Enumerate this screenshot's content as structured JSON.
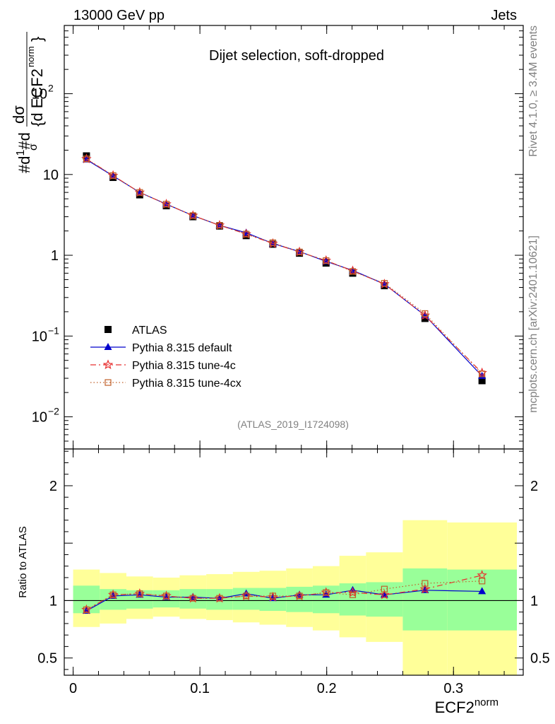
{
  "header": {
    "left": "13000 GeV pp",
    "right": "Jets"
  },
  "side_labels": {
    "top": "Rivet 4.1.0, ≥ 3.4M events",
    "bottom": "mcplots.cern.ch [arXiv:2401.10621]"
  },
  "chart_data": [
    {
      "type": "line",
      "panel": "main",
      "title": "Dijet selection, soft-dropped",
      "analysis_id": "(ATLAS_2019_I1724098)",
      "ylabel": "1/σ dσ/d ECF2^norm",
      "yscale": "log",
      "ylim": [
        0.004,
        700
      ],
      "xlim": [
        -0.007,
        0.355
      ],
      "ytick_labels": [
        "10",
        "1"
      ],
      "ytick_sci": [
        {
          "base": "10",
          "exp": "2",
          "value": 100
        },
        {
          "base": "10",
          "exp": "−1",
          "value": 0.1
        },
        {
          "base": "10",
          "exp": "−2",
          "value": 0.01
        }
      ],
      "x": [
        0.0105,
        0.0315,
        0.0525,
        0.0735,
        0.0945,
        0.1155,
        0.1365,
        0.1575,
        0.1785,
        0.1995,
        0.2205,
        0.2455,
        0.2775,
        0.3225
      ],
      "series": [
        {
          "name": "ATLAS",
          "color": "#000000",
          "marker": "square",
          "values": [
            17.0,
            9.2,
            5.6,
            4.1,
            3.0,
            2.3,
            1.75,
            1.37,
            1.06,
            0.8,
            0.6,
            0.42,
            0.165,
            0.028
          ]
        },
        {
          "name": "Pythia 8.315 default",
          "color": "#0000cc",
          "marker": "triangle",
          "values": [
            15.3,
            9.6,
            6.0,
            4.3,
            3.1,
            2.35,
            1.9,
            1.4,
            1.11,
            0.84,
            0.65,
            0.44,
            0.18,
            0.032
          ]
        },
        {
          "name": "Pythia 8.315 tune-4c",
          "color": "#e83030",
          "marker": "star",
          "values": [
            15.6,
            9.7,
            6.0,
            4.3,
            3.1,
            2.35,
            1.83,
            1.4,
            1.1,
            0.86,
            0.64,
            0.44,
            0.18,
            0.035
          ]
        },
        {
          "name": "Pythia 8.315 tune-4cx",
          "color": "#c0602a",
          "marker": "open-square",
          "values": [
            15.6,
            9.7,
            6.0,
            4.3,
            3.1,
            2.35,
            1.83,
            1.43,
            1.1,
            0.86,
            0.63,
            0.45,
            0.19,
            0.034
          ]
        }
      ]
    },
    {
      "type": "line",
      "panel": "ratio",
      "ylabel": "Ratio to ATLAS",
      "xlabel": "ECF2^norm",
      "ylim": [
        0.35,
        2.32
      ],
      "xlim": [
        -0.007,
        0.355
      ],
      "ytick_labels": [
        "0.5",
        "1",
        "2"
      ],
      "xtick_labels": [
        "0",
        "0.1",
        "0.2",
        "0.3"
      ],
      "band_edges": [
        0,
        0.021,
        0.042,
        0.063,
        0.084,
        0.105,
        0.126,
        0.147,
        0.168,
        0.189,
        0.21,
        0.231,
        0.26,
        0.295,
        0.35
      ],
      "band_stat_lo": [
        0.89,
        0.92,
        0.93,
        0.94,
        0.93,
        0.92,
        0.92,
        0.91,
        0.9,
        0.89,
        0.87,
        0.86,
        0.74,
        0.74
      ],
      "band_stat_hi": [
        1.13,
        1.1,
        1.09,
        1.09,
        1.1,
        1.1,
        1.11,
        1.11,
        1.12,
        1.13,
        1.15,
        1.16,
        1.28,
        1.27
      ],
      "band_syst_lo": [
        0.77,
        0.8,
        0.84,
        0.86,
        0.84,
        0.83,
        0.81,
        0.79,
        0.77,
        0.74,
        0.68,
        0.64,
        0.34,
        0.34
      ],
      "band_syst_hi": [
        1.27,
        1.24,
        1.21,
        1.2,
        1.22,
        1.23,
        1.25,
        1.26,
        1.28,
        1.3,
        1.39,
        1.42,
        1.7,
        1.68
      ],
      "x": [
        0.0105,
        0.0315,
        0.0525,
        0.0735,
        0.0945,
        0.1155,
        0.1365,
        0.1575,
        0.1785,
        0.1995,
        0.2205,
        0.2455,
        0.2775,
        0.3225
      ],
      "series": [
        {
          "name": "Pythia 8.315 default",
          "color": "#0000cc",
          "marker": "triangle",
          "values": [
            0.91,
            1.04,
            1.05,
            1.03,
            1.03,
            1.02,
            1.06,
            1.02,
            1.05,
            1.05,
            1.09,
            1.05,
            1.09,
            1.08
          ]
        },
        {
          "name": "Pythia 8.315 tune-4c",
          "color": "#e83030",
          "marker": "star",
          "values": [
            0.92,
            1.05,
            1.06,
            1.04,
            1.02,
            1.02,
            1.04,
            1.03,
            1.04,
            1.07,
            1.07,
            1.05,
            1.1,
            1.22
          ]
        },
        {
          "name": "Pythia 8.315 tune-4cx",
          "color": "#c0602a",
          "marker": "open-square",
          "values": [
            0.92,
            1.05,
            1.06,
            1.04,
            1.02,
            1.02,
            1.04,
            1.04,
            1.04,
            1.07,
            1.05,
            1.1,
            1.15,
            1.17
          ]
        }
      ]
    }
  ]
}
